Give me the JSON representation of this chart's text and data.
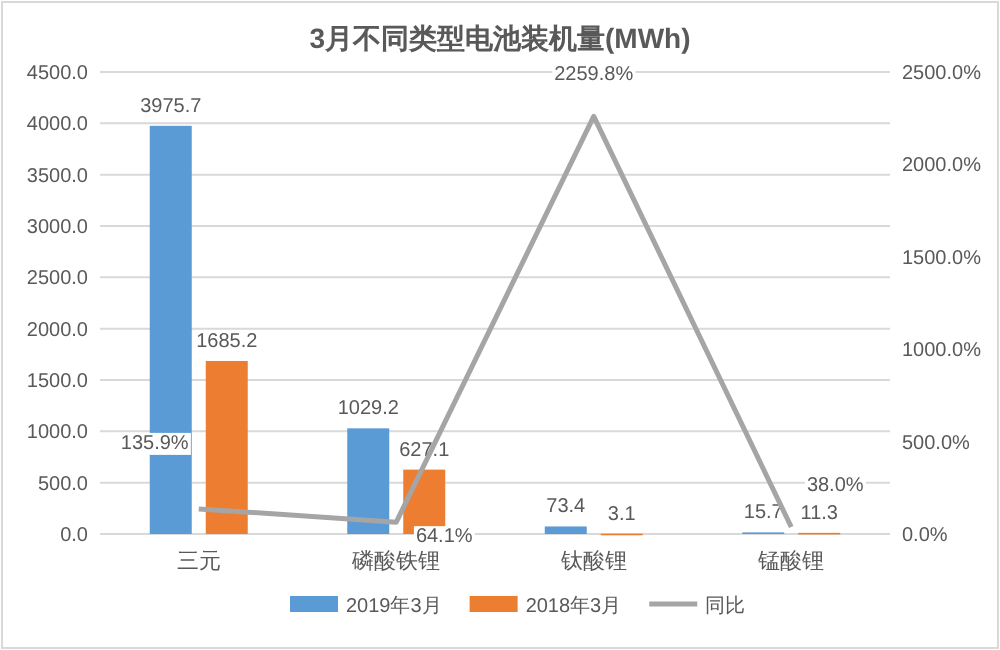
{
  "chart_data": {
    "type": "bar",
    "title": "3月不同类型电池装机量(MWh)",
    "categories": [
      "三元",
      "磷酸铁锂",
      "钛酸锂",
      "锰酸锂"
    ],
    "series": [
      {
        "name": "2019年3月",
        "color": "#5b9bd5",
        "values": [
          3975.7,
          1029.2,
          73.4,
          15.7
        ],
        "value_labels": [
          "3975.7",
          "1029.2",
          "73.4",
          "15.7"
        ]
      },
      {
        "name": "2018年3月",
        "color": "#ed7d31",
        "values": [
          1685.2,
          627.1,
          3.1,
          11.3
        ],
        "value_labels": [
          "1685.2",
          "627.1",
          "3.1",
          "11.3"
        ]
      },
      {
        "name": "同比",
        "type": "line",
        "axis": "y2",
        "color": "#a5a5a5",
        "values": [
          135.9,
          64.1,
          2259.8,
          38.0
        ],
        "value_labels": [
          "135.9%",
          "64.1%",
          "2259.8%",
          "38.0%"
        ]
      }
    ],
    "ylim": [
      0,
      4500
    ],
    "yticks": [
      {
        "value": 0,
        "label": "0.0"
      },
      {
        "value": 500,
        "label": "500.0"
      },
      {
        "value": 1000,
        "label": "1000.0"
      },
      {
        "value": 1500,
        "label": "1500.0"
      },
      {
        "value": 2000,
        "label": "2000.0"
      },
      {
        "value": 2500,
        "label": "2500.0"
      },
      {
        "value": 3000,
        "label": "3000.0"
      },
      {
        "value": 3500,
        "label": "3500.0"
      },
      {
        "value": 4000,
        "label": "4000.0"
      },
      {
        "value": 4500,
        "label": "4500.0"
      }
    ],
    "y2lim": [
      0,
      2500
    ],
    "y2ticks": [
      {
        "value": 0,
        "label": "0.0%"
      },
      {
        "value": 500,
        "label": "500.0%"
      },
      {
        "value": 1000,
        "label": "1000.0%"
      },
      {
        "value": 1500,
        "label": "1500.0%"
      },
      {
        "value": 2000,
        "label": "2000.0%"
      },
      {
        "value": 2500,
        "label": "2500.0%"
      }
    ],
    "grid": "y",
    "legend": "bottom"
  }
}
